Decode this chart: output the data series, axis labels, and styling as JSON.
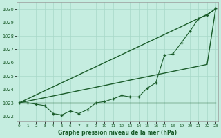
{
  "title": "Graphe pression niveau de la mer (hPa)",
  "bg_color": "#c5ede0",
  "grid_color": "#a8d8c8",
  "line_color": "#1a5c2a",
  "xlim": [
    -0.3,
    23.3
  ],
  "ylim": [
    1021.6,
    1030.5
  ],
  "yticks": [
    1022,
    1023,
    1024,
    1025,
    1026,
    1027,
    1028,
    1029,
    1030
  ],
  "xticks": [
    0,
    1,
    2,
    3,
    4,
    5,
    6,
    7,
    8,
    9,
    10,
    11,
    12,
    13,
    14,
    15,
    16,
    17,
    18,
    19,
    20,
    21,
    22,
    23
  ],
  "line_flat": [
    1023.0,
    1023.0,
    1023.0,
    1023.0,
    1023.0,
    1023.0,
    1023.0,
    1023.0,
    1023.0,
    1023.0,
    1023.0,
    1023.0,
    1023.0,
    1023.0,
    1023.0,
    1023.0,
    1023.0,
    1023.0,
    1023.0,
    1023.0,
    1023.0,
    1023.0,
    1023.0,
    1023.0
  ],
  "line_diag1": [
    1023.0,
    1023.13,
    1023.26,
    1023.39,
    1023.52,
    1023.65,
    1023.78,
    1023.91,
    1024.04,
    1024.17,
    1024.3,
    1024.43,
    1024.56,
    1024.7,
    1024.83,
    1024.96,
    1025.09,
    1025.22,
    1025.35,
    1025.48,
    1025.61,
    1025.74,
    1025.87,
    1030.0
  ],
  "line_diag2": [
    1023.0,
    1023.3,
    1023.6,
    1023.9,
    1024.2,
    1024.5,
    1024.8,
    1025.1,
    1025.4,
    1025.7,
    1026.0,
    1026.3,
    1026.6,
    1026.9,
    1027.2,
    1027.5,
    1027.8,
    1028.1,
    1028.4,
    1028.7,
    1029.0,
    1029.3,
    1029.6,
    1030.0
  ],
  "line_curve": [
    1023.0,
    1023.0,
    1022.9,
    1022.8,
    1022.2,
    1022.1,
    1022.4,
    1022.2,
    1022.5,
    1023.0,
    1023.1,
    1023.3,
    1023.55,
    1023.45,
    1023.45,
    1024.1,
    1024.5,
    1026.55,
    1026.65,
    1027.5,
    1028.35,
    1029.3,
    1029.55,
    1030.05
  ]
}
